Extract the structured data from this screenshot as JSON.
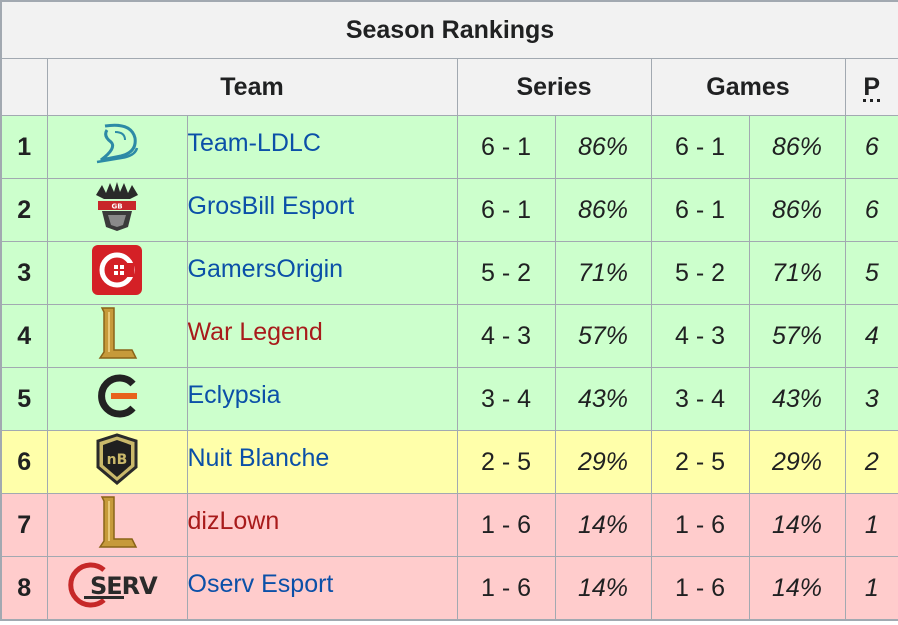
{
  "table": {
    "title": "Season Rankings",
    "headers": {
      "team": "Team",
      "series": "Series",
      "games": "Games",
      "points": "P"
    },
    "rows": [
      {
        "rank": "1",
        "team": "Team-LDLC",
        "logo": "ldlc-logo",
        "link": "blue",
        "status": "green",
        "series_record": "6 - 1",
        "series_pct": "86%",
        "games_record": "6 - 1",
        "games_pct": "86%",
        "points": "6"
      },
      {
        "rank": "2",
        "team": "GrosBill Esport",
        "logo": "grosbill-logo",
        "link": "blue",
        "status": "green",
        "series_record": "6 - 1",
        "series_pct": "86%",
        "games_record": "6 - 1",
        "games_pct": "86%",
        "points": "6"
      },
      {
        "rank": "3",
        "team": "GamersOrigin",
        "logo": "gamersorigin-logo",
        "link": "blue",
        "status": "green",
        "series_record": "5 - 2",
        "series_pct": "71%",
        "games_record": "5 - 2",
        "games_pct": "71%",
        "points": "5"
      },
      {
        "rank": "4",
        "team": "War Legend",
        "logo": "league-l-logo",
        "link": "red",
        "status": "green",
        "series_record": "4 - 3",
        "series_pct": "57%",
        "games_record": "4 - 3",
        "games_pct": "57%",
        "points": "4"
      },
      {
        "rank": "5",
        "team": "Eclypsia",
        "logo": "eclypsia-logo",
        "link": "blue",
        "status": "green",
        "series_record": "3 - 4",
        "series_pct": "43%",
        "games_record": "3 - 4",
        "games_pct": "43%",
        "points": "3"
      },
      {
        "rank": "6",
        "team": "Nuit Blanche",
        "logo": "nuit-blanche-logo",
        "link": "blue",
        "status": "yellow",
        "series_record": "2 - 5",
        "series_pct": "29%",
        "games_record": "2 - 5",
        "games_pct": "29%",
        "points": "2"
      },
      {
        "rank": "7",
        "team": "dizLown",
        "logo": "league-l-logo",
        "link": "red",
        "status": "red",
        "series_record": "1 - 6",
        "series_pct": "14%",
        "games_record": "1 - 6",
        "games_pct": "14%",
        "points": "1"
      },
      {
        "rank": "8",
        "team": "Oserv Esport",
        "logo": "oserv-logo",
        "link": "blue",
        "status": "red",
        "series_record": "1 - 6",
        "series_pct": "14%",
        "games_record": "1 - 6",
        "games_pct": "14%",
        "points": "1"
      }
    ]
  },
  "colors": {
    "green_row": "#ccffcc",
    "yellow_row": "#ffffaa",
    "red_row": "#ffcccc",
    "header_bg": "#f2f2f2",
    "link_blue": "#0b50a8",
    "link_red": "#a81b1b"
  }
}
